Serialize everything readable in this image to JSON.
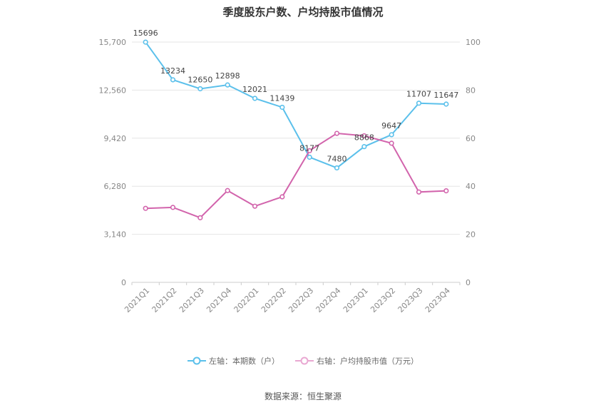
{
  "chart_data": {
    "type": "line",
    "title": "季度股东户数、户均持股市值情况",
    "categories": [
      "2021Q1",
      "2021Q2",
      "2021Q3",
      "2021Q4",
      "2022Q1",
      "2022Q2",
      "2022Q3",
      "2022Q4",
      "2023Q1",
      "2023Q2",
      "2023Q3",
      "2023Q4"
    ],
    "series": [
      {
        "name": "左轴：本期数（户）",
        "axis": "left",
        "color": "#5bc0eb",
        "values": [
          15696,
          13234,
          12650,
          12898,
          12021,
          11439,
          8177,
          7480,
          8868,
          9647,
          11707,
          11647
        ],
        "labels": [
          "15696",
          "13234",
          "12650",
          "12898",
          "12021",
          "11439",
          "8177",
          "7480",
          "8868",
          "9647",
          "11707",
          "11647"
        ]
      },
      {
        "name": "右轴：户均持股市值（万元）",
        "axis": "right",
        "color": "#d264ac",
        "values": [
          30.8,
          31.2,
          26.9,
          38.2,
          31.7,
          35.6,
          54.8,
          62.0,
          61.0,
          57.9,
          37.6,
          38.1
        ]
      }
    ],
    "left_axis": {
      "ylim": [
        0,
        15700
      ],
      "ticks": [
        "0",
        "3,140",
        "6,280",
        "9,420",
        "12,560",
        "15,700"
      ],
      "tick_values": [
        0,
        3140,
        6280,
        9420,
        12560,
        15700
      ]
    },
    "right_axis": {
      "ylim": [
        0,
        100
      ],
      "ticks": [
        "0",
        "20",
        "40",
        "60",
        "80",
        "100"
      ],
      "tick_values": [
        0,
        20,
        40,
        60,
        80,
        100
      ]
    },
    "grid": true,
    "legend_position": "bottom"
  },
  "source": "数据来源：恒生聚源"
}
